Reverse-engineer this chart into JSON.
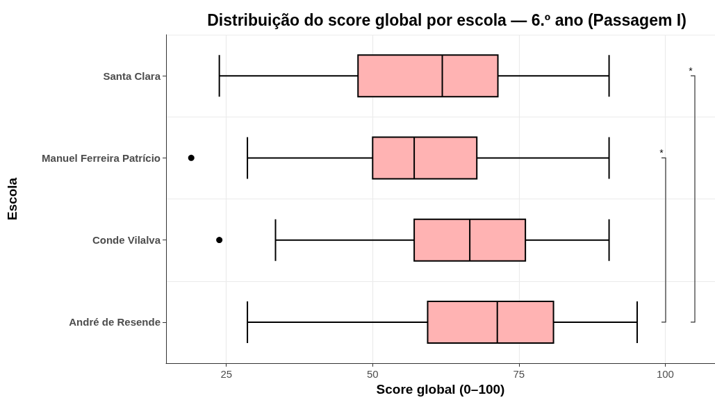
{
  "chart_data": {
    "type": "box",
    "title": "Distribuição do score global por escola — 6.º ano (Passagem I)",
    "xlabel": "Score global (0–100)",
    "ylabel": "Escola",
    "orientation": "horizontal",
    "categories": [
      "Santa Clara",
      "Manuel Ferreira Patrício",
      "Conde Vilalva",
      "André de Resende"
    ],
    "series": [
      {
        "color": "#ffb3b3",
        "boxes": [
          {
            "low": 23.8,
            "q1": 47.5,
            "median": 61.9,
            "q3": 71.4,
            "high": 90.4
          },
          {
            "low": 28.6,
            "q1": 50,
            "median": 57.1,
            "q3": 67.8,
            "high": 90.4,
            "outliers": [
              19
            ]
          },
          {
            "low": 33.4,
            "q1": 57.1,
            "median": 66.6,
            "q3": 76.1,
            "high": 90.4,
            "outliers": [
              23.8
            ]
          },
          {
            "low": 28.6,
            "q1": 59.4,
            "median": 71.3,
            "q3": 80.9,
            "high": 95.2
          }
        ]
      }
    ],
    "xlim": [
      14.7,
      108.5
    ],
    "xticks": [
      25,
      50,
      75,
      100
    ],
    "grid": true,
    "annotations": [
      "*",
      "*"
    ]
  }
}
